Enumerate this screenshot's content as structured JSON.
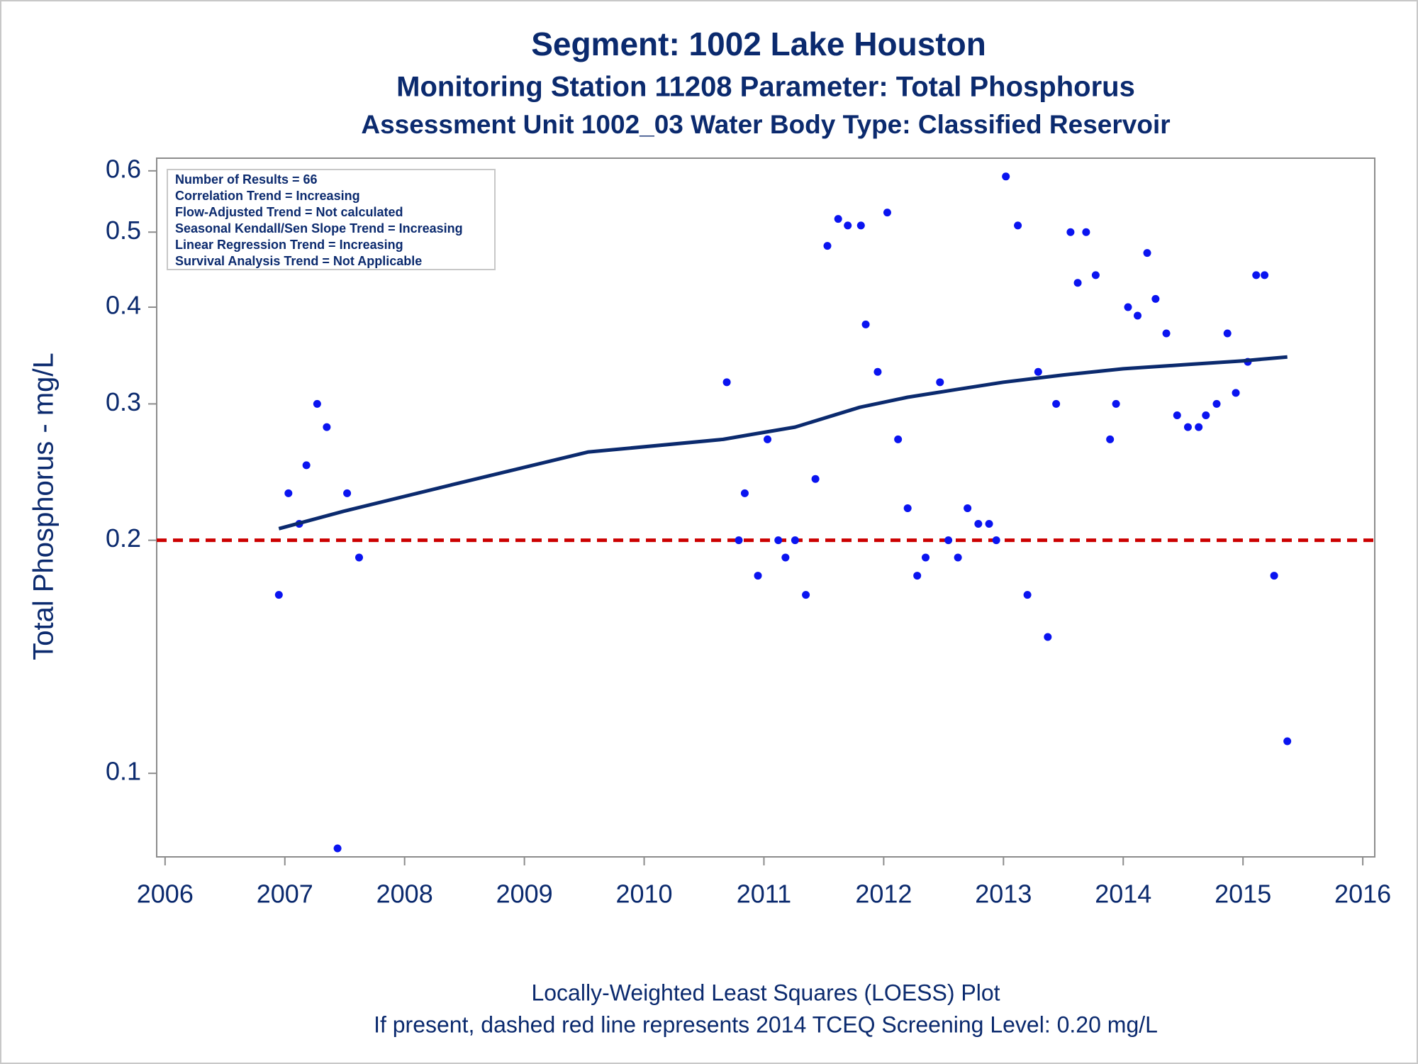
{
  "chart_data": {
    "type": "scatter",
    "title": "Segment: 1002  Lake Houston",
    "subtitles": [
      "Monitoring Station 11208 Parameter: Total Phosphorus",
      "Assessment Unit 1002_03   Water Body Type: Classified Reservoir"
    ],
    "y_label": "Total Phosphorus - mg/L",
    "stats_box": [
      "Number of Results = 66",
      "Correlation Trend = Increasing",
      "Flow-Adjusted Trend = Not calculated",
      "Seasonal Kendall/Sen Slope Trend = Increasing",
      "Linear Regression Trend = Increasing",
      "Survival Analysis Trend = Not Applicable"
    ],
    "footnotes": [
      "Locally-Weighted Least Squares (LOESS) Plot",
      "If present, dashed red line represents 2014 TCEQ Screening Level: 0.20 mg/L"
    ],
    "log_y": true,
    "xlim": [
      2005.93,
      2016.1
    ],
    "xticks": [
      2006,
      2007,
      2008,
      2009,
      2010,
      2011,
      2012,
      2013,
      2014,
      2015,
      2016
    ],
    "ylim": [
      0.078,
      0.623
    ],
    "yticks": [
      0.1,
      0.2,
      0.3,
      0.4,
      0.5,
      0.6
    ],
    "color": "#0a14f0",
    "x": [
      2006.95,
      2007.03,
      2007.12,
      2007.18,
      2007.27,
      2007.35,
      2007.44,
      2007.52,
      2007.62,
      2010.69,
      2010.79,
      2010.84,
      2010.95,
      2011.03,
      2011.12,
      2011.18,
      2011.26,
      2011.35,
      2011.43,
      2011.53,
      2011.62,
      2011.7,
      2011.81,
      2011.85,
      2011.95,
      2012.03,
      2012.12,
      2012.2,
      2012.28,
      2012.35,
      2012.47,
      2012.54,
      2012.62,
      2012.7,
      2012.79,
      2012.88,
      2012.94,
      2013.02,
      2013.12,
      2013.2,
      2013.29,
      2013.37,
      2013.44,
      2013.56,
      2013.62,
      2013.69,
      2013.77,
      2013.89,
      2013.94,
      2014.04,
      2014.12,
      2014.2,
      2014.27,
      2014.36,
      2014.45,
      2014.54,
      2014.63,
      2014.69,
      2014.78,
      2014.87,
      2014.94,
      2015.04,
      2015.11,
      2015.18,
      2015.26,
      2015.37
    ],
    "values": [
      0.17,
      0.23,
      0.21,
      0.25,
      0.3,
      0.28,
      0.08,
      0.23,
      0.19,
      0.32,
      0.2,
      0.23,
      0.18,
      0.27,
      0.2,
      0.19,
      0.2,
      0.17,
      0.24,
      0.48,
      0.52,
      0.51,
      0.51,
      0.38,
      0.33,
      0.53,
      0.27,
      0.22,
      0.18,
      0.19,
      0.32,
      0.2,
      0.19,
      0.22,
      0.21,
      0.21,
      0.2,
      0.59,
      0.51,
      0.17,
      0.33,
      0.15,
      0.3,
      0.5,
      0.43,
      0.5,
      0.44,
      0.27,
      0.3,
      0.4,
      0.39,
      0.47,
      0.41,
      0.37,
      0.29,
      0.28,
      0.28,
      0.29,
      0.3,
      0.37,
      0.31,
      0.34,
      0.44,
      0.44,
      0.18,
      0.11
    ],
    "loess": {
      "color": "#0b2a6e",
      "x": [
        2006.95,
        2007.49,
        2008.4,
        2009.53,
        2010.66,
        2010.9,
        2011.26,
        2011.8,
        2012.2,
        2012.6,
        2013.0,
        2013.5,
        2014.0,
        2014.5,
        2015.0,
        2015.37
      ],
      "values": [
        0.207,
        0.218,
        0.236,
        0.26,
        0.27,
        0.274,
        0.28,
        0.297,
        0.306,
        0.313,
        0.32,
        0.327,
        0.333,
        0.337,
        0.341,
        0.345
      ]
    },
    "reference_line": {
      "value": 0.2,
      "color": "#cc0000"
    }
  }
}
